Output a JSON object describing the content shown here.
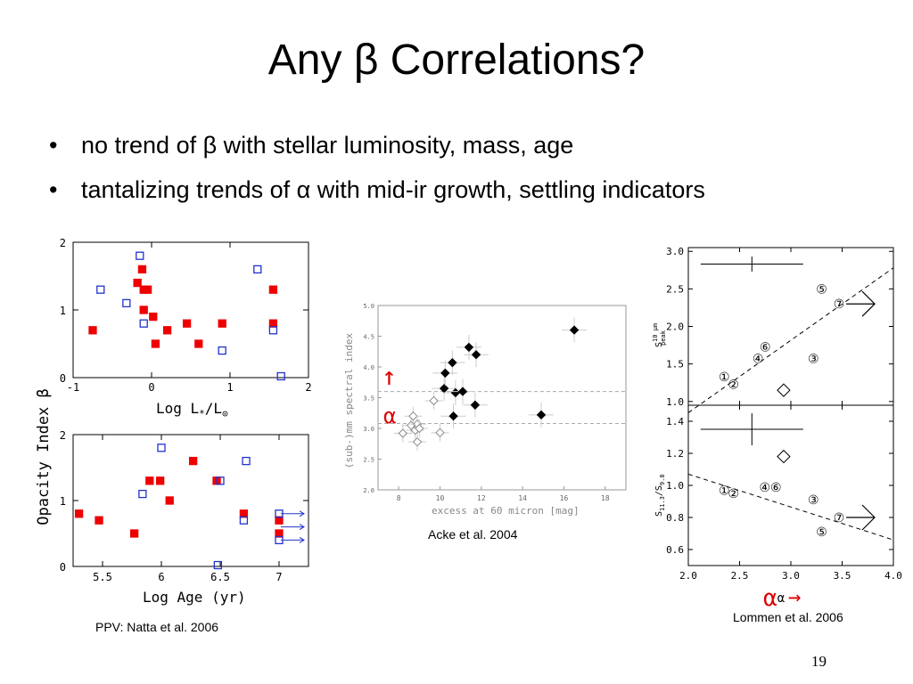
{
  "slide": {
    "title": "Any β Correlations?",
    "bullets": [
      "no trend of β with stellar luminosity, mass, age",
      "tantalizing trends of α with mid-ir growth, settling indicators"
    ],
    "bullet_char": "•",
    "page_number": "19"
  },
  "captions": {
    "natta": "PPV: Natta et al. 2006",
    "acke": "Acke et al.  2004",
    "lommen": "Lommen et al.  2006"
  },
  "colors": {
    "filled": "#ee0000",
    "open": "#2233cc",
    "alpha_red": "#dd0000"
  },
  "chart_data": [
    {
      "type": "scatter",
      "id": "natta-lum",
      "ylabel": "Opacity Index β",
      "xlabel_parts": [
        "Log L",
        "*",
        "/L",
        "⊙"
      ],
      "xlim": [
        -1,
        2
      ],
      "ylim": [
        0,
        2
      ],
      "xticks": [
        "-1",
        "0",
        "1",
        "2"
      ],
      "yticks": [
        "0",
        "1",
        "2"
      ],
      "series": [
        {
          "marker": "filled-square",
          "points": [
            [
              -0.75,
              0.7
            ],
            [
              -0.18,
              1.4
            ],
            [
              -0.12,
              1.6
            ],
            [
              -0.1,
              1.3
            ],
            [
              -0.05,
              1.3
            ],
            [
              -0.1,
              1.0
            ],
            [
              0.02,
              0.9
            ],
            [
              0.05,
              0.5
            ],
            [
              0.2,
              0.7
            ],
            [
              0.45,
              0.8
            ],
            [
              0.6,
              0.5
            ],
            [
              0.9,
              0.8
            ],
            [
              1.55,
              1.3
            ],
            [
              1.55,
              0.8
            ]
          ]
        },
        {
          "marker": "open-square",
          "points": [
            [
              -0.65,
              1.3
            ],
            [
              -0.15,
              1.8
            ],
            [
              -0.32,
              1.1
            ],
            [
              -0.1,
              0.8
            ],
            [
              0.9,
              0.4
            ],
            [
              1.35,
              1.6
            ],
            [
              1.55,
              0.7
            ],
            [
              1.65,
              0.02
            ]
          ]
        }
      ]
    },
    {
      "type": "scatter",
      "id": "natta-age",
      "xlabel": "Log Age  (yr)",
      "xlim": [
        5.25,
        7.25
      ],
      "ylim": [
        0,
        2
      ],
      "xticks": [
        "5.5",
        "6",
        "6.5",
        "7"
      ],
      "yticks": [
        "0",
        "1",
        "2"
      ],
      "series": [
        {
          "marker": "filled-square",
          "points": [
            [
              5.3,
              0.8
            ],
            [
              5.47,
              0.7
            ],
            [
              5.77,
              0.5
            ],
            [
              5.9,
              1.3
            ],
            [
              5.99,
              1.3
            ],
            [
              6.07,
              1.0
            ],
            [
              6.27,
              1.6
            ],
            [
              6.47,
              1.3
            ],
            [
              6.7,
              0.8
            ],
            [
              7.0,
              0.7
            ],
            [
              7.0,
              0.5
            ]
          ]
        },
        {
          "marker": "open-square",
          "points": [
            [
              5.84,
              1.1
            ],
            [
              6.0,
              1.8
            ],
            [
              6.5,
              1.3
            ],
            [
              6.72,
              1.6
            ],
            [
              6.7,
              0.7
            ],
            [
              7.0,
              0.8
            ],
            [
              7.0,
              0.4
            ],
            [
              6.48,
              0.02
            ]
          ]
        }
      ],
      "arrows": [
        [
          7.0,
          0.8
        ],
        [
          7.0,
          0.6
        ],
        [
          7.0,
          0.4
        ]
      ]
    },
    {
      "type": "scatter",
      "id": "acke",
      "xlabel": "excess at 60 micron [mag]",
      "ylabel": "(sub-)mm spectral index",
      "xlim": [
        7,
        19
      ],
      "ylim": [
        2.0,
        5.0
      ],
      "xticks": [
        "8",
        "10",
        "12",
        "14",
        "16",
        "18"
      ],
      "yticks": [
        "2.0",
        "2.5",
        "3.0",
        "3.5",
        "4.0",
        "4.5",
        "5.0"
      ],
      "hlines": [
        3.6,
        3.08
      ],
      "series": [
        {
          "marker": "filled-diamond",
          "points": [
            [
              10.2,
              3.65
            ],
            [
              10.25,
              3.9
            ],
            [
              10.6,
              4.07
            ],
            [
              10.75,
              3.58
            ],
            [
              11.1,
              3.6
            ],
            [
              11.4,
              4.32
            ],
            [
              11.75,
              4.2
            ],
            [
              10.65,
              3.2
            ],
            [
              11.7,
              3.38
            ],
            [
              14.9,
              3.22
            ],
            [
              16.5,
              4.6
            ]
          ]
        },
        {
          "marker": "open-diamond",
          "points": [
            [
              8.2,
              2.92
            ],
            [
              8.6,
              3.05
            ],
            [
              8.7,
              3.2
            ],
            [
              8.9,
              3.07
            ],
            [
              8.8,
              2.97
            ],
            [
              9.0,
              3.0
            ],
            [
              8.9,
              2.78
            ],
            [
              9.7,
              3.45
            ],
            [
              10.0,
              2.93
            ]
          ]
        }
      ],
      "annotation_arrow": "↑",
      "annotation_label": "α"
    },
    {
      "type": "scatter",
      "id": "lommen-top",
      "ylabel_parts": [
        "S",
        "10 μm",
        "peak"
      ],
      "xlim": [
        2.0,
        4.0
      ],
      "ylim": [
        0.95,
        3.05
      ],
      "yticks": [
        "1.0",
        "1.5",
        "2.0",
        "2.5",
        "3.0"
      ],
      "trend": [
        [
          2.0,
          0.85
        ],
        [
          4.0,
          2.78
        ]
      ],
      "errorbar": {
        "x": 2.62,
        "y": 2.83,
        "dx": 0.5,
        "dy": 0.1
      },
      "labeled_points": [
        {
          "label": "①",
          "x": 2.35,
          "y": 1.33
        },
        {
          "label": "②",
          "x": 2.44,
          "y": 1.23
        },
        {
          "label": "③",
          "x": 3.22,
          "y": 1.57
        },
        {
          "label": "④",
          "x": 2.68,
          "y": 1.57
        },
        {
          "label": "⑤",
          "x": 3.3,
          "y": 2.5
        },
        {
          "label": "⑥",
          "x": 2.75,
          "y": 1.73
        },
        {
          "label": "⑦",
          "x": 3.47,
          "y": 2.3
        }
      ],
      "diamond": [
        2.93,
        1.15
      ]
    },
    {
      "type": "scatter",
      "id": "lommen-bottom",
      "ylabel_parts": [
        "S",
        "11.3",
        "/S",
        "9.8"
      ],
      "xlabel": "α",
      "xlim": [
        2.0,
        4.0
      ],
      "ylim": [
        0.5,
        1.5
      ],
      "xticks": [
        "2.0",
        "2.5",
        "3.0",
        "3.5",
        "4.0"
      ],
      "yticks": [
        "0.6",
        "0.8",
        "1.0",
        "1.2",
        "1.4"
      ],
      "trend": [
        [
          2.0,
          1.07
        ],
        [
          4.0,
          0.66
        ]
      ],
      "errorbar": {
        "x": 2.62,
        "y": 1.35,
        "dx": 0.5,
        "dy": 0.1
      },
      "labeled_points": [
        {
          "label": "①",
          "x": 2.35,
          "y": 0.97
        },
        {
          "label": "②",
          "x": 2.44,
          "y": 0.95
        },
        {
          "label": "③",
          "x": 3.22,
          "y": 0.91
        },
        {
          "label": "④⑥",
          "x": 2.8,
          "y": 0.99
        },
        {
          "label": "⑤",
          "x": 3.3,
          "y": 0.71
        },
        {
          "label": "⑦",
          "x": 3.47,
          "y": 0.8
        }
      ],
      "diamond": [
        2.93,
        1.18
      ],
      "alpha_annotation": {
        "symbol": "α",
        "arrow": "→"
      }
    }
  ]
}
